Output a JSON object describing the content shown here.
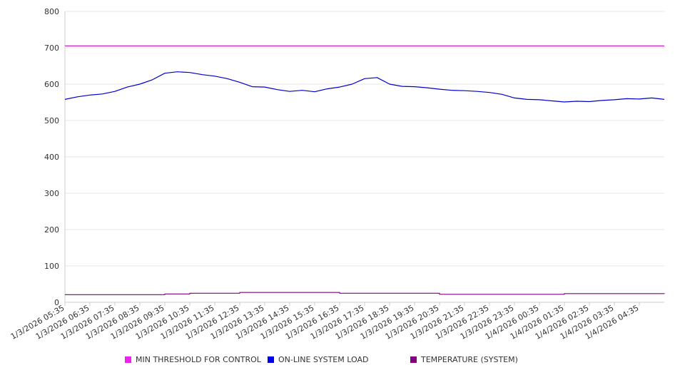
{
  "chart_data": {
    "type": "line",
    "ylim": [
      0,
      800
    ],
    "y_ticks": [
      "0",
      "100",
      "200",
      "300",
      "400",
      "500",
      "600",
      "700",
      "800"
    ],
    "x_labels": [
      "1/3/2026 05:35",
      "1/3/2026 06:35",
      "1/3/2026 07:35",
      "1/3/2026 08:35",
      "1/3/2026 09:35",
      "1/3/2026 10:35",
      "1/3/2026 11:35",
      "1/3/2026 12:35",
      "1/3/2026 13:35",
      "1/3/2026 14:35",
      "1/3/2026 15:35",
      "1/3/2026 16:35",
      "1/3/2026 17:35",
      "1/3/2026 18:35",
      "1/3/2026 19:35",
      "1/3/2026 20:35",
      "1/3/2026 21:35",
      "1/3/2026 22:35",
      "1/3/2026 23:35",
      "1/4/2026 00:35",
      "1/4/2026 01:35",
      "1/4/2026 02:35",
      "1/4/2026 03:35",
      "1/4/2026 04:35"
    ],
    "x_range": [
      "1/3/2026 05:35",
      "1/4/2026 05:35"
    ],
    "grid": "horizontal",
    "legend_position": "bottom",
    "series": [
      {
        "name": "MIN THRESHOLD FOR CONTROL",
        "color": "#cc22cc",
        "x": [
          "1/3/2026 05:35",
          "1/4/2026 05:35"
        ],
        "values": [
          705,
          705
        ]
      },
      {
        "name": "ON-LINE SYSTEM LOAD",
        "color": "#0000cc",
        "x": [
          "1/3/2026 05:35",
          "1/3/2026 06:05",
          "1/3/2026 06:35",
          "1/3/2026 07:05",
          "1/3/2026 07:35",
          "1/3/2026 08:05",
          "1/3/2026 08:35",
          "1/3/2026 09:05",
          "1/3/2026 09:35",
          "1/3/2026 10:05",
          "1/3/2026 10:35",
          "1/3/2026 11:05",
          "1/3/2026 11:35",
          "1/3/2026 12:05",
          "1/3/2026 12:35",
          "1/3/2026 13:05",
          "1/3/2026 13:35",
          "1/3/2026 14:05",
          "1/3/2026 14:35",
          "1/3/2026 15:05",
          "1/3/2026 15:35",
          "1/3/2026 16:05",
          "1/3/2026 16:35",
          "1/3/2026 17:05",
          "1/3/2026 17:35",
          "1/3/2026 18:05",
          "1/3/2026 18:35",
          "1/3/2026 19:05",
          "1/3/2026 19:35",
          "1/3/2026 20:05",
          "1/3/2026 20:35",
          "1/3/2026 21:05",
          "1/3/2026 21:35",
          "1/3/2026 22:05",
          "1/3/2026 22:35",
          "1/3/2026 23:05",
          "1/3/2026 23:35",
          "1/4/2026 00:05",
          "1/4/2026 00:35",
          "1/4/2026 01:05",
          "1/4/2026 01:35",
          "1/4/2026 02:05",
          "1/4/2026 02:35",
          "1/4/2026 03:05",
          "1/4/2026 03:35",
          "1/4/2026 04:05",
          "1/4/2026 04:35",
          "1/4/2026 05:05",
          "1/4/2026 05:35"
        ],
        "values": [
          558,
          565,
          570,
          573,
          580,
          592,
          600,
          612,
          630,
          634,
          632,
          626,
          622,
          615,
          605,
          593,
          592,
          585,
          580,
          583,
          579,
          587,
          592,
          600,
          615,
          618,
          600,
          594,
          593,
          590,
          586,
          583,
          582,
          580,
          577,
          572,
          562,
          558,
          557,
          554,
          551,
          553,
          552,
          555,
          557,
          560,
          559,
          562,
          558
        ]
      },
      {
        "name": "TEMPERATURE (SYSTEM)",
        "color": "#800080",
        "x": [
          "1/3/2026 05:35",
          "1/3/2026 09:35",
          "1/3/2026 10:35",
          "1/3/2026 12:35",
          "1/3/2026 16:35",
          "1/3/2026 20:35",
          "1/4/2026 01:35",
          "1/4/2026 05:35"
        ],
        "values": [
          21,
          23,
          25,
          27,
          25,
          22,
          24,
          25
        ]
      }
    ]
  }
}
